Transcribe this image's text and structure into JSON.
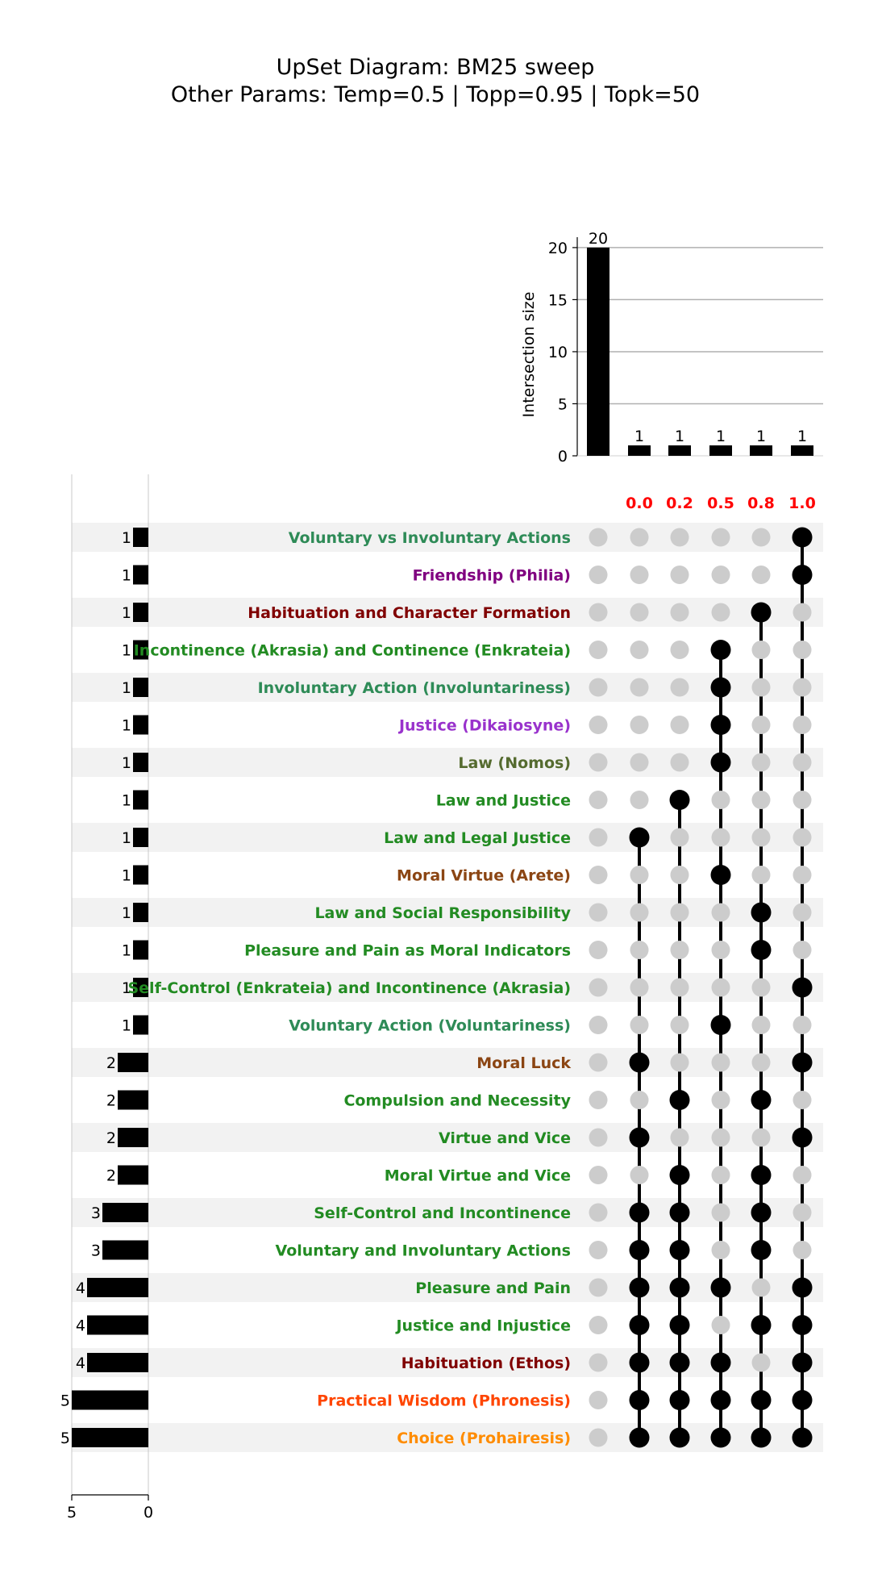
{
  "chart_data": {
    "type": "bar",
    "title": "UpSet Diagram: BM25 sweep",
    "subtitle": "Other Params: Temp=0.5 | Topp=0.95 | Topk=50",
    "intersection_axis": {
      "ylabel": "Intersection size",
      "ylim": [
        0,
        21
      ],
      "ticks": [
        0,
        5,
        10,
        15,
        20
      ],
      "grid": true
    },
    "set_size_axis": {
      "ticks": [
        5,
        0
      ],
      "xlim": [
        5,
        0
      ]
    },
    "set_label_color": "#ff0000",
    "set_names": [
      "0.0",
      "0.2",
      "0.5",
      "0.8",
      "1.0"
    ],
    "intersection_sizes": [
      20,
      1,
      1,
      1,
      1,
      1
    ],
    "intersection_sets": [
      [],
      [
        0
      ],
      [
        1
      ],
      [
        2
      ],
      [
        3
      ],
      [
        4
      ]
    ],
    "categories": [
      {
        "label": "Voluntary vs Involuntary Actions",
        "size": 1,
        "color": "#2e8b57",
        "members": [
          4
        ]
      },
      {
        "label": "Friendship (Philia)",
        "size": 1,
        "color": "#800080",
        "members": [
          4
        ]
      },
      {
        "label": "Habituation and Character Formation",
        "size": 1,
        "color": "#800000",
        "members": [
          3
        ]
      },
      {
        "label": "Incontinence (Akrasia) and Continence (Enkrateia)",
        "size": 1,
        "color": "#228b22",
        "members": [
          2
        ]
      },
      {
        "label": "Involuntary Action (Involuntariness)",
        "size": 1,
        "color": "#2e8b57",
        "members": [
          2
        ]
      },
      {
        "label": "Justice (Dikaiosyne)",
        "size": 1,
        "color": "#9932cc",
        "members": [
          2
        ]
      },
      {
        "label": "Law (Nomos)",
        "size": 1,
        "color": "#556b2f",
        "members": [
          2
        ]
      },
      {
        "label": "Law and Justice",
        "size": 1,
        "color": "#228b22",
        "members": [
          1
        ]
      },
      {
        "label": "Law and Legal Justice",
        "size": 1,
        "color": "#228b22",
        "members": [
          0
        ]
      },
      {
        "label": "Moral Virtue (Arete)",
        "size": 1,
        "color": "#8b4513",
        "members": [
          2
        ]
      },
      {
        "label": "Law and Social Responsibility",
        "size": 1,
        "color": "#228b22",
        "members": [
          3
        ]
      },
      {
        "label": "Pleasure and Pain as Moral Indicators",
        "size": 1,
        "color": "#228b22",
        "members": [
          3
        ]
      },
      {
        "label": "Self-Control (Enkrateia) and Incontinence (Akrasia)",
        "size": 1,
        "color": "#228b22",
        "members": [
          4
        ]
      },
      {
        "label": "Voluntary Action (Voluntariness)",
        "size": 1,
        "color": "#2e8b57",
        "members": [
          2
        ]
      },
      {
        "label": "Moral Luck",
        "size": 2,
        "color": "#8b4513",
        "members": [
          0,
          4
        ]
      },
      {
        "label": "Compulsion and Necessity",
        "size": 2,
        "color": "#228b22",
        "members": [
          1,
          3
        ]
      },
      {
        "label": "Virtue and Vice",
        "size": 2,
        "color": "#228b22",
        "members": [
          0,
          4
        ]
      },
      {
        "label": "Moral Virtue and Vice",
        "size": 2,
        "color": "#228b22",
        "members": [
          1,
          3
        ]
      },
      {
        "label": "Self-Control and Incontinence",
        "size": 3,
        "color": "#228b22",
        "members": [
          0,
          1,
          3
        ]
      },
      {
        "label": "Voluntary and Involuntary Actions",
        "size": 3,
        "color": "#228b22",
        "members": [
          0,
          1,
          3
        ]
      },
      {
        "label": "Pleasure and Pain",
        "size": 4,
        "color": "#228b22",
        "members": [
          0,
          1,
          2,
          4
        ]
      },
      {
        "label": "Justice and Injustice",
        "size": 4,
        "color": "#228b22",
        "members": [
          0,
          1,
          3,
          4
        ]
      },
      {
        "label": "Habituation (Ethos)",
        "size": 4,
        "color": "#800000",
        "members": [
          0,
          1,
          2,
          4
        ]
      },
      {
        "label": "Practical Wisdom (Phronesis)",
        "size": 5,
        "color": "#ff4500",
        "members": [
          0,
          1,
          2,
          3,
          4
        ]
      },
      {
        "label": "Choice (Prohairesis)",
        "size": 5,
        "color": "#ff8c00",
        "members": [
          0,
          1,
          2,
          3,
          4
        ]
      }
    ]
  }
}
